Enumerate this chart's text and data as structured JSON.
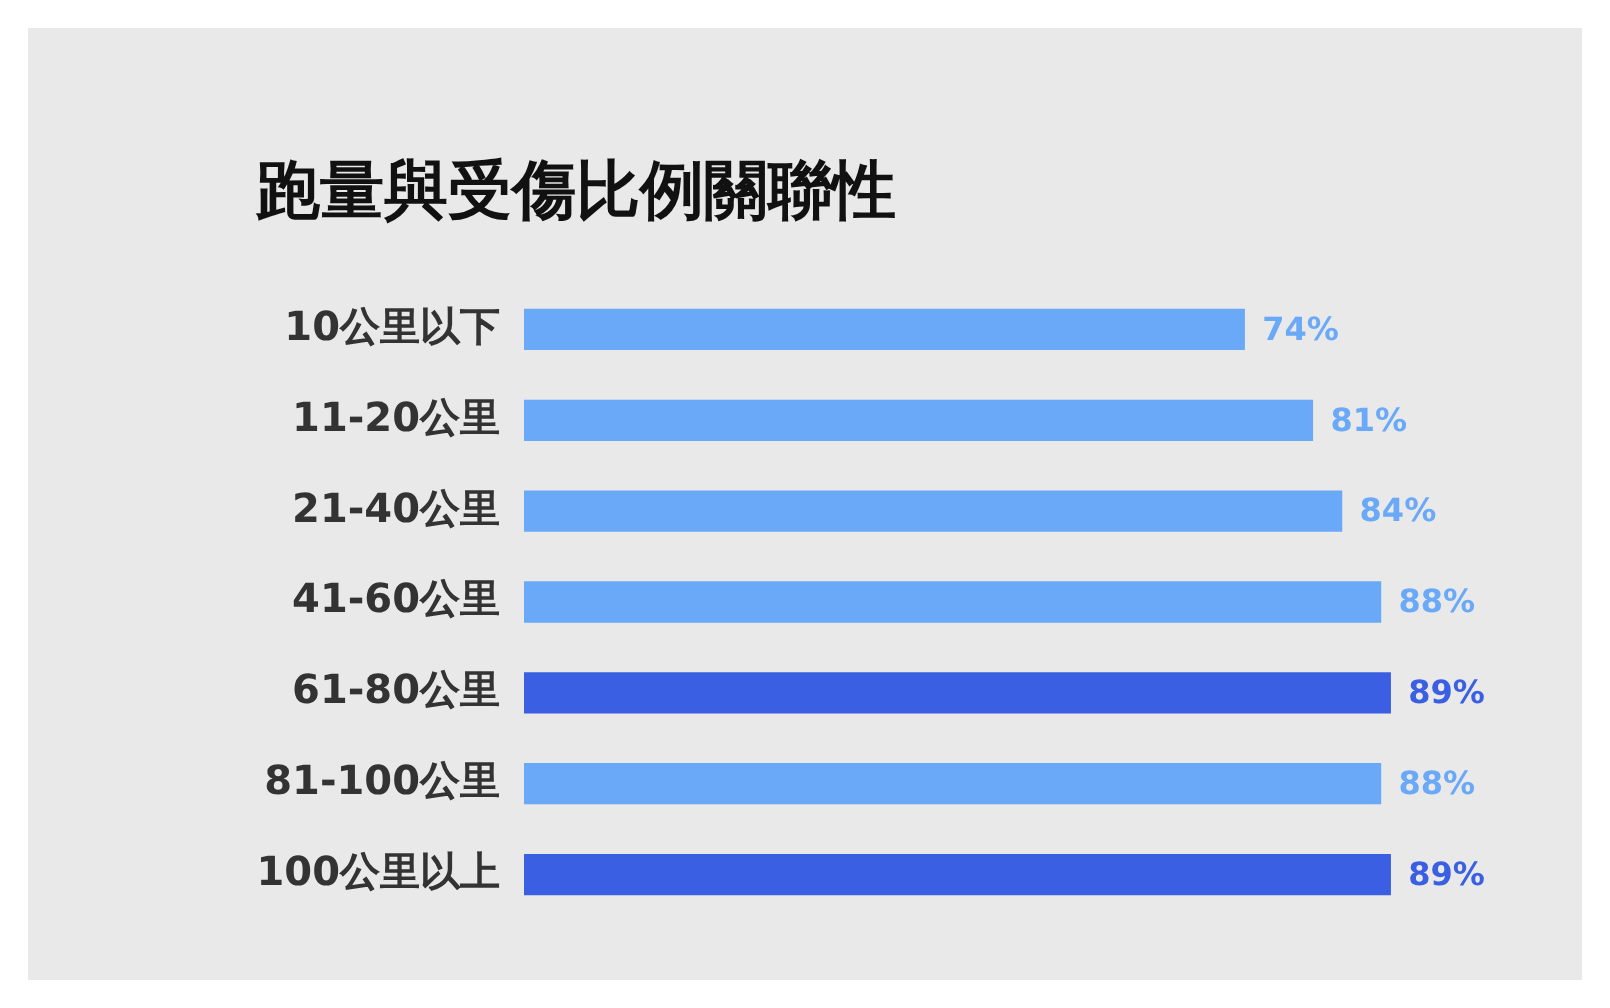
{
  "chart_data": {
    "type": "bar",
    "orientation": "horizontal",
    "title": "跑量與受傷比例關聯性",
    "categories": [
      "10公里以下",
      "11-20公里",
      "21-40公里",
      "41-60公里",
      "61-80公里",
      "81-100公里",
      "100公里以上"
    ],
    "values": [
      74,
      81,
      84,
      88,
      89,
      88,
      89
    ],
    "colors": [
      "#6aa9f7",
      "#6aa9f7",
      "#6aa9f7",
      "#6aa9f7",
      "#3b5fe3",
      "#6aa9f7",
      "#3b5fe3"
    ],
    "tick_labels": "y",
    "value_labels": [
      "74%",
      "81%",
      "84%",
      "88%",
      "89%",
      "88%",
      "89%"
    ]
  }
}
